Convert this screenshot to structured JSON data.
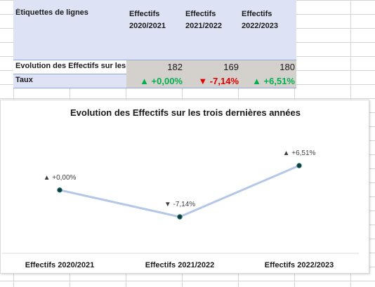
{
  "pivot": {
    "row_labels_header": "Étiquettes de lignes",
    "columns": [
      {
        "line1": "Effectifs",
        "line2": "2020/2021"
      },
      {
        "line1": "Effectifs",
        "line2": "2021/2022"
      },
      {
        "line1": "Effectifs",
        "line2": "2022/2023"
      }
    ],
    "rows": [
      {
        "label": "Evolution des Effectifs sur les trois dernières années",
        "values": [
          "182",
          "169",
          "180"
        ]
      },
      {
        "label": "Taux",
        "values": [
          "▲ +0,00%",
          "▼ -7,14%",
          "▲ +6,51%"
        ]
      }
    ],
    "colors": {
      "up": "#00b050",
      "down": "#e00000",
      "header_bg": "#dde3f5"
    }
  },
  "chart_data": {
    "type": "line",
    "title": "Evolution des Effectifs sur les trois dernières années",
    "categories": [
      "Effectifs 2020/2021",
      "Effectifs 2021/2022",
      "Effectifs 2022/2023"
    ],
    "series": [
      {
        "values": [
          0.0,
          -7.14,
          6.51
        ],
        "labels": [
          "▲ +0,00%",
          "▼ -7,14%",
          "▲ +6,51%"
        ],
        "color": "#b4c7e7"
      }
    ],
    "xlabel": "",
    "ylabel": "",
    "grid": false,
    "legend": "none"
  }
}
